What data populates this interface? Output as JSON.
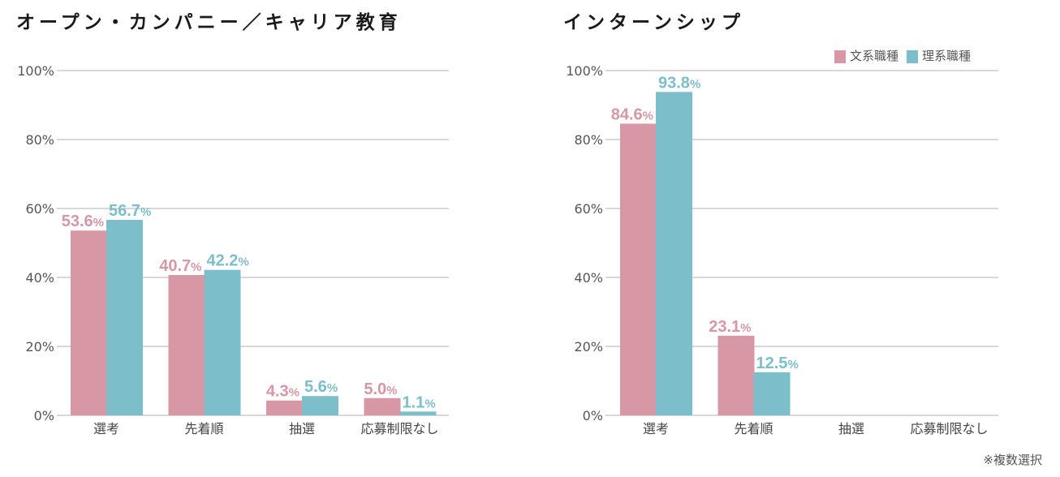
{
  "colors": {
    "bunkei": "#d897a4",
    "rikei": "#7cbfca"
  },
  "legend": [
    "文系職種",
    "理系職種"
  ],
  "note": "※複数選択",
  "chart_data": [
    {
      "type": "bar",
      "title": "オープン・カンパニー／キャリア教育",
      "categories": [
        "選考",
        "先着順",
        "抽選",
        "応募制限なし"
      ],
      "series": [
        {
          "name": "文系職種",
          "values": [
            53.6,
            40.7,
            4.3,
            5.0
          ]
        },
        {
          "name": "理系職種",
          "values": [
            56.7,
            42.2,
            5.6,
            1.1
          ]
        }
      ],
      "ylim": [
        0,
        100
      ],
      "yticks": [
        "0%",
        "20%",
        "40%",
        "60%",
        "80%",
        "100%"
      ],
      "grid": true
    },
    {
      "type": "bar",
      "title": "インターンシップ",
      "categories": [
        "選考",
        "先着順",
        "抽選",
        "応募制限なし"
      ],
      "series": [
        {
          "name": "文系職種",
          "values": [
            84.6,
            23.1,
            null,
            null
          ]
        },
        {
          "name": "理系職種",
          "values": [
            93.8,
            12.5,
            null,
            null
          ]
        }
      ],
      "ylim": [
        0,
        100
      ],
      "yticks": [
        "0%",
        "20%",
        "40%",
        "60%",
        "80%",
        "100%"
      ],
      "grid": true,
      "legend": "top-right"
    }
  ]
}
